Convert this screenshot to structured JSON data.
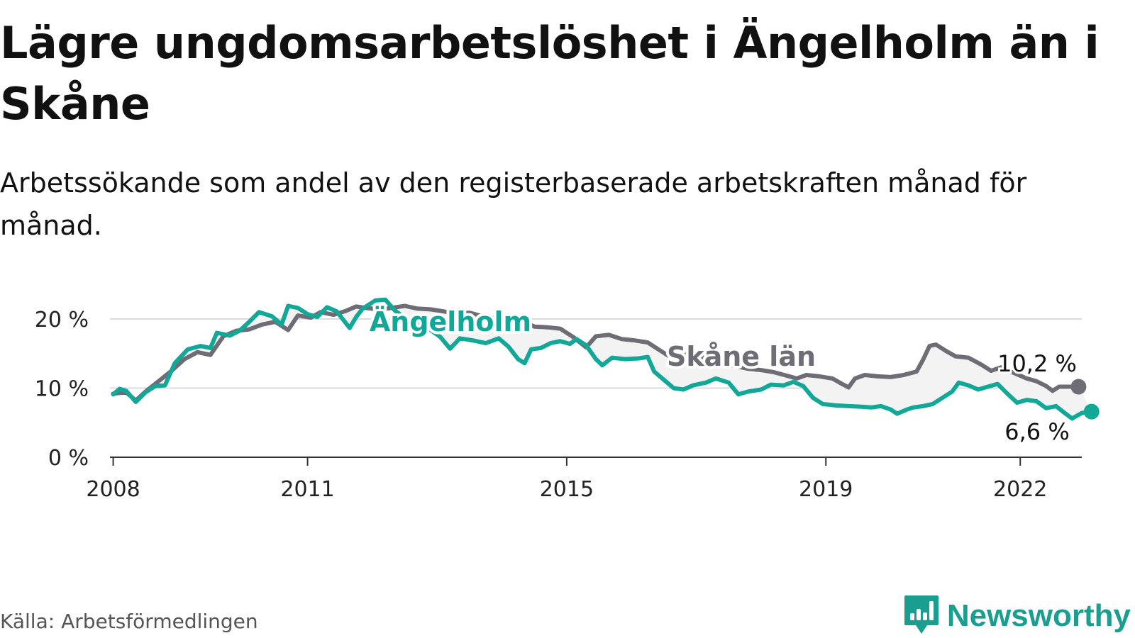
{
  "header": {
    "title": "Lägre ungdomsarbetslöshet i Ängelholm än i Skåne",
    "subtitle": "Arbetssökande som andel av den registerbaserade arbetskraften månad för månad."
  },
  "footer": {
    "source": "Källa: Arbetsförmedlingen",
    "brand": "Newsworthy"
  },
  "colors": {
    "angelholm": "#12a898",
    "skane": "#6e6c75",
    "gap_fill": "#f3f3f4",
    "grid": "#dcdcdc",
    "axis": "#333333",
    "brand": "#1a9e8f"
  },
  "icons": {
    "brand_logo": "bar-chart-speech-bubble-icon"
  },
  "chart_data": {
    "type": "line",
    "title": "Lägre ungdomsarbetslöshet i Ängelholm än i Skåne",
    "xlabel": "",
    "ylabel": "",
    "xlim": [
      2007.95,
      2022.95
    ],
    "ylim": [
      0,
      20
    ],
    "y_ticks": [
      0,
      10,
      20
    ],
    "y_tick_labels": [
      "0 %",
      "10 %",
      "20 %"
    ],
    "x_ticks": [
      2008,
      2011,
      2015,
      2019,
      2022
    ],
    "x_tick_labels": [
      "2008",
      "2011",
      "2015",
      "2019",
      "2022"
    ],
    "grid": "horizontal",
    "area_between_series": true,
    "series": [
      {
        "name": "Skåne län",
        "key": "skane",
        "label": "Skåne län",
        "end_label": "10,2 %",
        "points": [
          [
            2008.0,
            9.2
          ],
          [
            2008.2,
            9.4
          ],
          [
            2008.35,
            8.2
          ],
          [
            2008.5,
            9.5
          ],
          [
            2008.7,
            11.0
          ],
          [
            2008.9,
            12.5
          ],
          [
            2009.1,
            14.2
          ],
          [
            2009.3,
            15.2
          ],
          [
            2009.5,
            14.8
          ],
          [
            2009.7,
            17.5
          ],
          [
            2009.9,
            18.3
          ],
          [
            2010.1,
            18.5
          ],
          [
            2010.3,
            19.2
          ],
          [
            2010.5,
            19.6
          ],
          [
            2010.7,
            18.4
          ],
          [
            2010.85,
            20.5
          ],
          [
            2011.05,
            20.2
          ],
          [
            2011.2,
            21.0
          ],
          [
            2011.4,
            20.6
          ],
          [
            2011.6,
            21.2
          ],
          [
            2011.75,
            21.8
          ],
          [
            2011.9,
            21.6
          ],
          [
            2012.1,
            21.4
          ],
          [
            2012.3,
            21.6
          ],
          [
            2012.5,
            21.9
          ],
          [
            2012.7,
            21.5
          ],
          [
            2012.9,
            21.4
          ],
          [
            2013.1,
            21.1
          ],
          [
            2013.3,
            20.8
          ],
          [
            2013.5,
            20.9
          ],
          [
            2013.7,
            20.4
          ],
          [
            2013.9,
            20.1
          ],
          [
            2014.1,
            19.6
          ],
          [
            2014.3,
            19.8
          ],
          [
            2014.5,
            18.9
          ],
          [
            2014.7,
            18.8
          ],
          [
            2014.9,
            18.6
          ],
          [
            2015.1,
            17.4
          ],
          [
            2015.3,
            15.9
          ],
          [
            2015.45,
            17.5
          ],
          [
            2015.65,
            17.7
          ],
          [
            2015.85,
            17.1
          ],
          [
            2016.05,
            16.9
          ],
          [
            2016.25,
            16.6
          ],
          [
            2016.45,
            15.4
          ],
          [
            2016.6,
            14.5
          ],
          [
            2016.8,
            15.2
          ],
          [
            2017.0,
            14.9
          ],
          [
            2017.2,
            14.1
          ],
          [
            2017.4,
            13.6
          ],
          [
            2017.6,
            13.2
          ],
          [
            2017.8,
            12.8
          ],
          [
            2018.0,
            12.6
          ],
          [
            2018.2,
            12.3
          ],
          [
            2018.4,
            11.8
          ],
          [
            2018.55,
            11.4
          ],
          [
            2018.7,
            11.9
          ],
          [
            2018.9,
            11.7
          ],
          [
            2019.1,
            11.4
          ],
          [
            2019.25,
            10.6
          ],
          [
            2019.35,
            10.1
          ],
          [
            2019.45,
            11.4
          ],
          [
            2019.6,
            11.9
          ],
          [
            2019.8,
            11.7
          ],
          [
            2020.0,
            11.6
          ],
          [
            2020.2,
            11.9
          ],
          [
            2020.4,
            12.4
          ],
          [
            2020.5,
            14.1
          ],
          [
            2020.6,
            16.1
          ],
          [
            2020.7,
            16.3
          ],
          [
            2020.85,
            15.4
          ],
          [
            2021.0,
            14.6
          ],
          [
            2021.2,
            14.4
          ],
          [
            2021.4,
            13.4
          ],
          [
            2021.55,
            12.5
          ],
          [
            2021.7,
            13.0
          ],
          [
            2021.9,
            12.2
          ],
          [
            2022.1,
            11.4
          ],
          [
            2022.25,
            11.0
          ],
          [
            2022.4,
            10.3
          ],
          [
            2022.5,
            9.6
          ],
          [
            2022.6,
            10.2
          ],
          [
            2022.9,
            10.2
          ]
        ]
      },
      {
        "name": "Ängelholm",
        "key": "angelholm",
        "label": "Ängelholm",
        "end_label": "6,6 %",
        "points": [
          [
            2008.0,
            9.1
          ],
          [
            2008.1,
            9.9
          ],
          [
            2008.2,
            9.6
          ],
          [
            2008.35,
            8.0
          ],
          [
            2008.5,
            9.4
          ],
          [
            2008.65,
            10.3
          ],
          [
            2008.8,
            10.4
          ],
          [
            2008.95,
            13.6
          ],
          [
            2009.15,
            15.6
          ],
          [
            2009.35,
            16.1
          ],
          [
            2009.5,
            15.8
          ],
          [
            2009.6,
            18.0
          ],
          [
            2009.8,
            17.6
          ],
          [
            2009.95,
            18.3
          ],
          [
            2010.1,
            19.6
          ],
          [
            2010.25,
            21.0
          ],
          [
            2010.45,
            20.4
          ],
          [
            2010.6,
            19.2
          ],
          [
            2010.7,
            21.9
          ],
          [
            2010.85,
            21.6
          ],
          [
            2011.0,
            20.7
          ],
          [
            2011.15,
            20.3
          ],
          [
            2011.3,
            21.7
          ],
          [
            2011.45,
            21.1
          ],
          [
            2011.65,
            18.7
          ],
          [
            2011.75,
            20.3
          ],
          [
            2011.85,
            21.5
          ],
          [
            2012.05,
            22.7
          ],
          [
            2012.2,
            22.8
          ],
          [
            2012.35,
            21.2
          ],
          [
            2012.5,
            20.2
          ],
          [
            2012.7,
            19.4
          ],
          [
            2012.9,
            18.4
          ],
          [
            2013.05,
            17.4
          ],
          [
            2013.2,
            15.7
          ],
          [
            2013.35,
            17.2
          ],
          [
            2013.55,
            16.9
          ],
          [
            2013.75,
            16.5
          ],
          [
            2013.95,
            17.2
          ],
          [
            2014.1,
            16.0
          ],
          [
            2014.25,
            14.2
          ],
          [
            2014.35,
            13.6
          ],
          [
            2014.45,
            15.6
          ],
          [
            2014.6,
            15.8
          ],
          [
            2014.75,
            16.5
          ],
          [
            2014.9,
            16.8
          ],
          [
            2015.05,
            16.4
          ],
          [
            2015.15,
            17.1
          ],
          [
            2015.3,
            16.2
          ],
          [
            2015.45,
            14.2
          ],
          [
            2015.55,
            13.3
          ],
          [
            2015.7,
            14.4
          ],
          [
            2015.9,
            14.2
          ],
          [
            2016.1,
            14.3
          ],
          [
            2016.25,
            14.5
          ],
          [
            2016.35,
            12.4
          ],
          [
            2016.5,
            11.2
          ],
          [
            2016.65,
            10.0
          ],
          [
            2016.8,
            9.8
          ],
          [
            2016.95,
            10.4
          ],
          [
            2017.15,
            10.8
          ],
          [
            2017.3,
            11.4
          ],
          [
            2017.5,
            10.8
          ],
          [
            2017.65,
            9.1
          ],
          [
            2017.8,
            9.5
          ],
          [
            2018.0,
            9.8
          ],
          [
            2018.15,
            10.5
          ],
          [
            2018.35,
            10.4
          ],
          [
            2018.5,
            10.9
          ],
          [
            2018.65,
            10.3
          ],
          [
            2018.8,
            8.6
          ],
          [
            2018.95,
            7.7
          ],
          [
            2019.15,
            7.5
          ],
          [
            2019.35,
            7.4
          ],
          [
            2019.55,
            7.3
          ],
          [
            2019.7,
            7.2
          ],
          [
            2019.85,
            7.4
          ],
          [
            2020.0,
            6.9
          ],
          [
            2020.1,
            6.3
          ],
          [
            2020.25,
            6.9
          ],
          [
            2020.35,
            7.2
          ],
          [
            2020.5,
            7.4
          ],
          [
            2020.65,
            7.7
          ],
          [
            2020.8,
            8.6
          ],
          [
            2020.95,
            9.5
          ],
          [
            2021.05,
            10.8
          ],
          [
            2021.2,
            10.4
          ],
          [
            2021.35,
            9.8
          ],
          [
            2021.5,
            10.2
          ],
          [
            2021.65,
            10.6
          ],
          [
            2021.8,
            9.2
          ],
          [
            2021.95,
            7.9
          ],
          [
            2022.1,
            8.3
          ],
          [
            2022.25,
            8.1
          ],
          [
            2022.4,
            7.1
          ],
          [
            2022.55,
            7.4
          ],
          [
            2022.7,
            6.3
          ],
          [
            2022.8,
            5.6
          ],
          [
            2022.95,
            6.4
          ],
          [
            2023.1,
            6.6
          ]
        ]
      }
    ]
  }
}
